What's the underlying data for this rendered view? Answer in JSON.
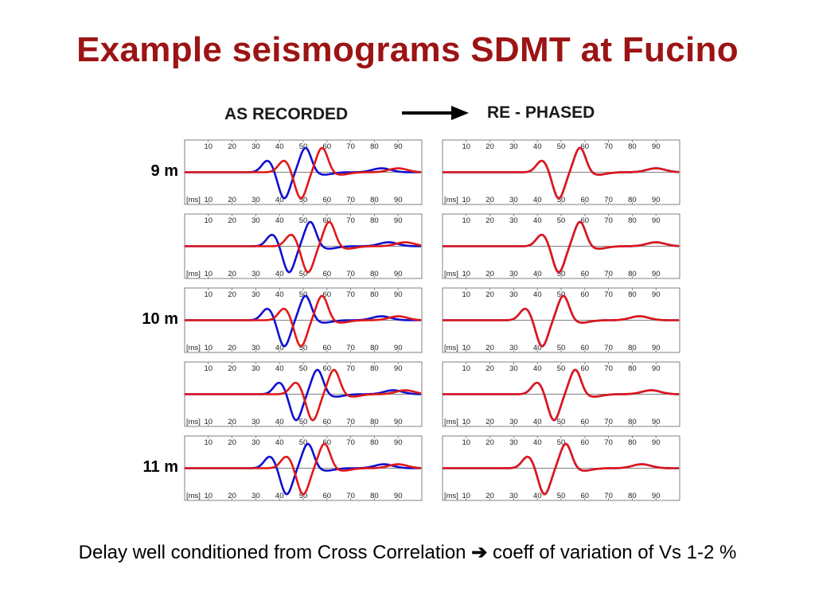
{
  "slide": {
    "title": "Example seismograms SDMT at Fucino",
    "left_header": "AS RECORDED",
    "right_header": "RE - PHASED",
    "caption_part1": "Delay well conditioned from Cross Correlation",
    "caption_arrow": "➔",
    "caption_part2": "coeff of variation of Vs  1-2 %",
    "arrow_icon": "right-arrow-icon",
    "colors": {
      "title": "#9c1414",
      "trace_a": "#1010d0",
      "trace_b": "#e01818",
      "frame": "#808080"
    }
  },
  "depth_labels": [
    {
      "label": "9 m",
      "row": 0
    },
    {
      "label": "10 m",
      "row": 2
    },
    {
      "label": "11 m",
      "row": 4
    }
  ],
  "chart_data": [
    {
      "type": "line",
      "title": "AS RECORDED",
      "x_unit_label": "[ms]",
      "x_ticks": [
        10,
        20,
        30,
        40,
        50,
        60,
        70,
        80,
        90
      ],
      "xlim": [
        0,
        100
      ],
      "panels": [
        {
          "row": 0,
          "series": [
            {
              "name": "",
              "color": "blue",
              "shape": [
                [
                  35,
                  0.45
                ],
                [
                  42,
                  -1.0
                ],
                [
                  51,
                  0.95
                ],
                [
                  58,
                  -0.1
                ],
                [
                  83,
                  0.15
                ]
              ]
            },
            {
              "name": "",
              "color": "red",
              "shape": [
                [
                  42,
                  0.45
                ],
                [
                  49,
                  -1.0
                ],
                [
                  58,
                  0.95
                ],
                [
                  65,
                  -0.1
                ],
                [
                  90,
                  0.15
                ]
              ]
            }
          ]
        },
        {
          "row": 1,
          "series": [
            {
              "name": "",
              "color": "blue",
              "shape": [
                [
                  37,
                  0.45
                ],
                [
                  44,
                  -1.0
                ],
                [
                  53,
                  0.95
                ],
                [
                  60,
                  -0.1
                ],
                [
                  86,
                  0.15
                ]
              ]
            },
            {
              "name": "",
              "color": "red",
              "shape": [
                [
                  45,
                  0.45
                ],
                [
                  52,
                  -1.0
                ],
                [
                  61,
                  0.95
                ],
                [
                  68,
                  -0.1
                ],
                [
                  93,
                  0.15
                ]
              ]
            }
          ]
        },
        {
          "row": 2,
          "series": [
            {
              "name": "",
              "color": "blue",
              "shape": [
                [
                  35,
                  0.45
                ],
                [
                  42,
                  -1.0
                ],
                [
                  51,
                  0.95
                ],
                [
                  58,
                  -0.1
                ],
                [
                  83,
                  0.15
                ]
              ]
            },
            {
              "name": "",
              "color": "red",
              "shape": [
                [
                  42,
                  0.45
                ],
                [
                  49,
                  -1.0
                ],
                [
                  58,
                  0.95
                ],
                [
                  65,
                  -0.1
                ],
                [
                  90,
                  0.15
                ]
              ]
            }
          ]
        },
        {
          "row": 3,
          "series": [
            {
              "name": "",
              "color": "blue",
              "shape": [
                [
                  40,
                  0.45
                ],
                [
                  47,
                  -1.0
                ],
                [
                  56,
                  0.95
                ],
                [
                  63,
                  -0.1
                ],
                [
                  88,
                  0.15
                ]
              ]
            },
            {
              "name": "",
              "color": "red",
              "shape": [
                [
                  47,
                  0.45
                ],
                [
                  54,
                  -1.0
                ],
                [
                  63,
                  0.95
                ],
                [
                  70,
                  -0.1
                ],
                [
                  93,
                  0.15
                ]
              ]
            }
          ]
        },
        {
          "row": 4,
          "series": [
            {
              "name": "",
              "color": "blue",
              "shape": [
                [
                  36,
                  0.45
                ],
                [
                  43,
                  -1.0
                ],
                [
                  52,
                  0.95
                ],
                [
                  59,
                  -0.1
                ],
                [
                  84,
                  0.15
                ]
              ]
            },
            {
              "name": "",
              "color": "red",
              "shape": [
                [
                  43,
                  0.45
                ],
                [
                  50,
                  -1.0
                ],
                [
                  59,
                  0.95
                ],
                [
                  66,
                  -0.1
                ],
                [
                  90,
                  0.15
                ]
              ]
            }
          ]
        }
      ]
    },
    {
      "type": "line",
      "title": "RE - PHASED",
      "x_unit_label": "[ms]",
      "x_ticks": [
        10,
        20,
        30,
        40,
        50,
        60,
        70,
        80,
        90
      ],
      "xlim": [
        0,
        100
      ],
      "panels": [
        {
          "row": 0,
          "series": [
            {
              "name": "",
              "color": "blue",
              "shape": [
                [
                  42,
                  0.45
                ],
                [
                  49,
                  -1.0
                ],
                [
                  58,
                  0.95
                ],
                [
                  65,
                  -0.1
                ],
                [
                  90,
                  0.15
                ]
              ]
            },
            {
              "name": "",
              "color": "red",
              "shape": [
                [
                  42,
                  0.45
                ],
                [
                  49,
                  -1.0
                ],
                [
                  58,
                  0.95
                ],
                [
                  65,
                  -0.1
                ],
                [
                  90,
                  0.15
                ]
              ]
            }
          ]
        },
        {
          "row": 1,
          "series": [
            {
              "name": "",
              "color": "blue",
              "shape": [
                [
                  42,
                  0.45
                ],
                [
                  49,
                  -1.0
                ],
                [
                  58,
                  0.95
                ],
                [
                  65,
                  -0.1
                ],
                [
                  90,
                  0.15
                ]
              ]
            },
            {
              "name": "",
              "color": "red",
              "shape": [
                [
                  42,
                  0.45
                ],
                [
                  49,
                  -1.0
                ],
                [
                  58,
                  0.95
                ],
                [
                  65,
                  -0.1
                ],
                [
                  90,
                  0.15
                ]
              ]
            }
          ]
        },
        {
          "row": 2,
          "series": [
            {
              "name": "",
              "color": "blue",
              "shape": [
                [
                  35,
                  0.45
                ],
                [
                  42,
                  -1.0
                ],
                [
                  51,
                  0.95
                ],
                [
                  58,
                  -0.1
                ],
                [
                  83,
                  0.15
                ]
              ]
            },
            {
              "name": "",
              "color": "red",
              "shape": [
                [
                  35,
                  0.45
                ],
                [
                  42,
                  -1.0
                ],
                [
                  51,
                  0.95
                ],
                [
                  58,
                  -0.1
                ],
                [
                  83,
                  0.15
                ]
              ]
            }
          ]
        },
        {
          "row": 3,
          "series": [
            {
              "name": "",
              "color": "blue",
              "shape": [
                [
                  40,
                  0.45
                ],
                [
                  47,
                  -1.0
                ],
                [
                  56,
                  0.95
                ],
                [
                  63,
                  -0.1
                ],
                [
                  88,
                  0.15
                ]
              ]
            },
            {
              "name": "",
              "color": "red",
              "shape": [
                [
                  40,
                  0.45
                ],
                [
                  47,
                  -1.0
                ],
                [
                  56,
                  0.95
                ],
                [
                  63,
                  -0.1
                ],
                [
                  88,
                  0.15
                ]
              ]
            }
          ]
        },
        {
          "row": 4,
          "series": [
            {
              "name": "",
              "color": "blue",
              "shape": [
                [
                  36,
                  0.45
                ],
                [
                  43,
                  -1.0
                ],
                [
                  52,
                  0.95
                ],
                [
                  59,
                  -0.1
                ],
                [
                  84,
                  0.15
                ]
              ]
            },
            {
              "name": "",
              "color": "red",
              "shape": [
                [
                  36,
                  0.45
                ],
                [
                  43,
                  -1.0
                ],
                [
                  52,
                  0.95
                ],
                [
                  59,
                  -0.1
                ],
                [
                  84,
                  0.15
                ]
              ]
            }
          ]
        }
      ]
    }
  ]
}
